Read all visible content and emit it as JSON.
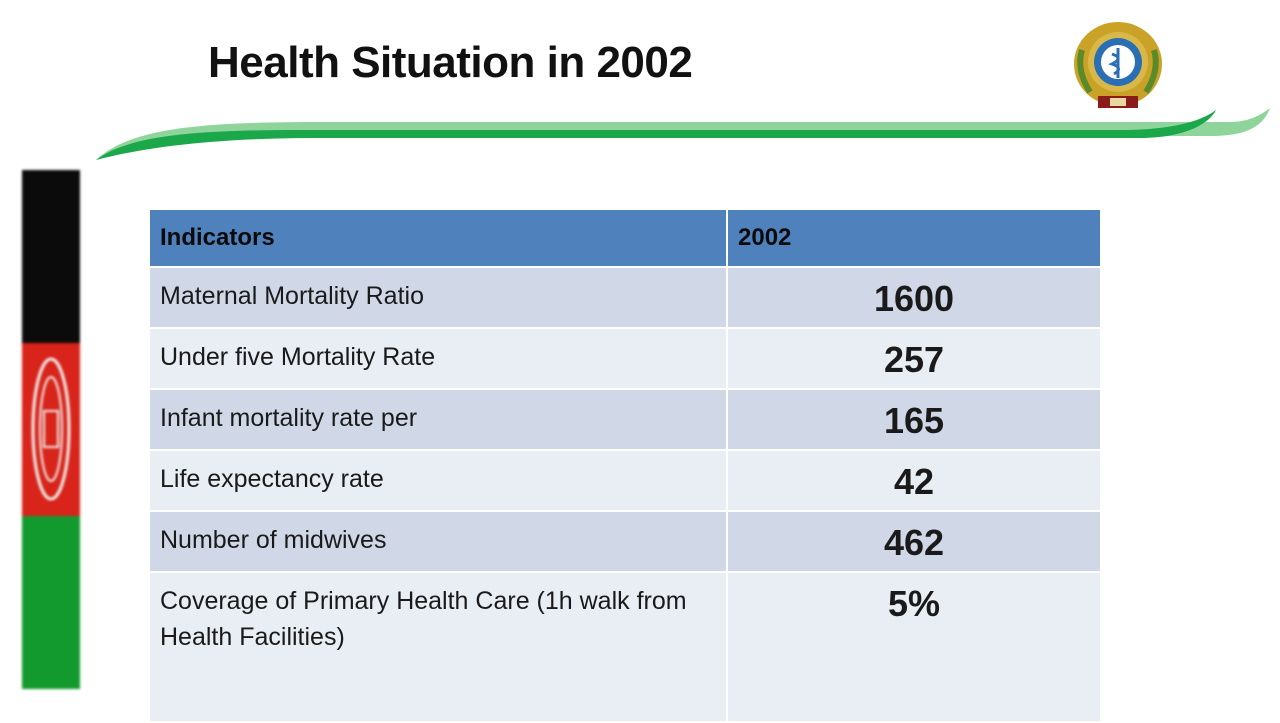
{
  "slide": {
    "title": "Health Situation in 2002",
    "colors": {
      "swoosh_dark": "#1aa84a",
      "swoosh_light": "#8fd49b",
      "header_blue": "#4f81bd",
      "row_odd": "#d0d8e8",
      "row_even": "#e9edf4",
      "flag_black": "#0b0b0b",
      "flag_red": "#d8241a",
      "flag_green": "#139a2e"
    },
    "icons": [
      "ministry-emblem-icon",
      "afghanistan-flag-icon",
      "flag-seal-icon"
    ]
  },
  "table": {
    "headers": [
      "Indicators",
      "2002"
    ],
    "rows": [
      {
        "indicator": "Maternal Mortality Ratio",
        "value": "1600"
      },
      {
        "indicator": "Under five Mortality Rate",
        "value": "257"
      },
      {
        "indicator": "Infant mortality rate per",
        "value": "165"
      },
      {
        "indicator": "Life expectancy rate",
        "value": "42"
      },
      {
        "indicator": "Number of midwives",
        "value": "462"
      },
      {
        "indicator": "Coverage of Primary Health Care  (1h walk from Health Facilities)",
        "value": "5%"
      }
    ]
  }
}
